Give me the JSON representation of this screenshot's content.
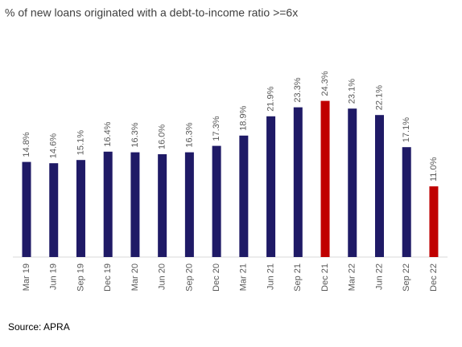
{
  "chart_data": {
    "type": "bar",
    "title": "% of new loans originated with a debt-to-income ratio >=6x",
    "categories": [
      "Mar 19",
      "Jun 19",
      "Sep 19",
      "Dec 19",
      "Mar 20",
      "Jun 20",
      "Sep 20",
      "Dec 20",
      "Mar 21",
      "Jun 21",
      "Sep 21",
      "Dec 21",
      "Mar 22",
      "Jun 22",
      "Sep 22",
      "Dec 22"
    ],
    "values": [
      14.8,
      14.6,
      15.1,
      16.4,
      16.3,
      16.0,
      16.3,
      17.3,
      18.9,
      21.9,
      23.3,
      24.3,
      23.1,
      22.1,
      17.1,
      11.0
    ],
    "value_labels": [
      "14.8%",
      "14.6%",
      "15.1%",
      "16.4%",
      "16.3%",
      "16.0%",
      "16.3%",
      "17.3%",
      "18.9%",
      "21.9%",
      "23.3%",
      "24.3%",
      "23.1%",
      "22.1%",
      "17.1%",
      "11.0%"
    ],
    "colors": [
      "#1f1a66",
      "#1f1a66",
      "#1f1a66",
      "#1f1a66",
      "#1f1a66",
      "#1f1a66",
      "#1f1a66",
      "#1f1a66",
      "#1f1a66",
      "#1f1a66",
      "#1f1a66",
      "#c00000",
      "#1f1a66",
      "#1f1a66",
      "#1f1a66",
      "#c00000"
    ],
    "ylim": [
      0,
      25
    ],
    "source": "Source: APRA"
  }
}
